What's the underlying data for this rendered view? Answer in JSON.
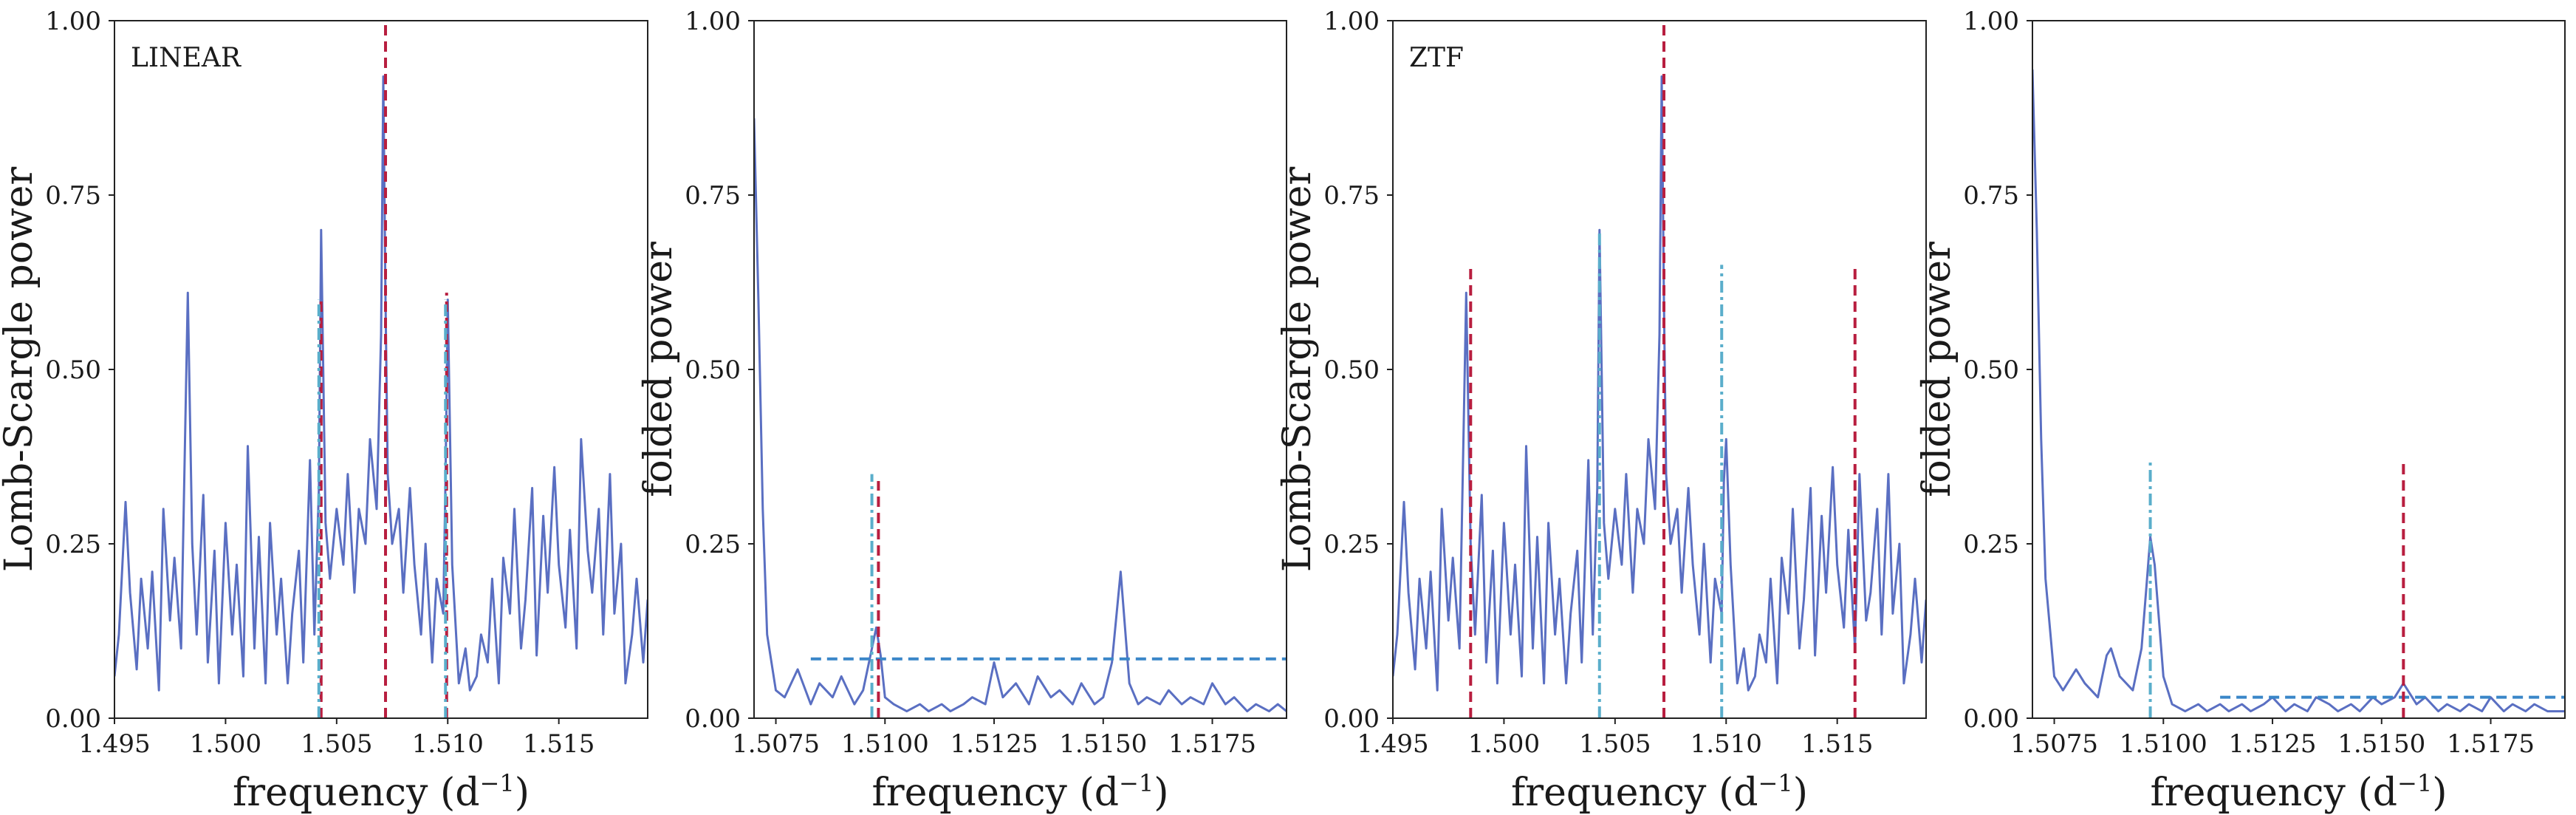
{
  "colors": {
    "periodogram": "#5a6fc2",
    "main_peak_marker": "#b81e3f",
    "alias_marker": "#5aaecb",
    "threshold": "#3a86c8",
    "frame": "#222222"
  },
  "chart_data": [
    {
      "type": "line",
      "panel_label": "LINEAR",
      "xlabel": "frequency (d",
      "xlabel_exp": "−1",
      "xlabel_end": ")",
      "ylabel": "Lomb-Scargle power",
      "xlim": [
        1.495,
        1.519
      ],
      "ylim": [
        0.0,
        1.0
      ],
      "xticks": [
        1.495,
        1.5,
        1.505,
        1.51,
        1.515
      ],
      "xtick_labels": [
        "1.495",
        "1.500",
        "1.505",
        "1.510",
        "1.515"
      ],
      "yticks": [
        0.0,
        0.25,
        0.5,
        0.75,
        1.0
      ],
      "ytick_labels": [
        "0.00",
        "0.25",
        "0.50",
        "0.75",
        "1.00"
      ],
      "grid": false,
      "series": [
        {
          "x": [
            1.495,
            1.4952,
            1.4955,
            1.4957,
            1.496,
            1.4962,
            1.4965,
            1.4967,
            1.497,
            1.4972,
            1.4975,
            1.4977,
            1.498,
            1.4983,
            1.4985,
            1.4987,
            1.499,
            1.4992,
            1.4995,
            1.4997,
            1.5,
            1.5003,
            1.5005,
            1.5008,
            1.501,
            1.5013,
            1.5015,
            1.5018,
            1.502,
            1.5023,
            1.5025,
            1.5028,
            1.503,
            1.5033,
            1.5035,
            1.5038,
            1.504,
            1.5042,
            1.5043,
            1.5045,
            1.5047,
            1.505,
            1.5053,
            1.5055,
            1.5058,
            1.506,
            1.5063,
            1.5065,
            1.5068,
            1.507,
            1.5071,
            1.5072,
            1.5073,
            1.5075,
            1.5078,
            1.508,
            1.5083,
            1.5085,
            1.5088,
            1.509,
            1.5093,
            1.5095,
            1.5098,
            1.5099,
            1.51,
            1.5102,
            1.5105,
            1.5108,
            1.511,
            1.5113,
            1.5115,
            1.5118,
            1.512,
            1.5123,
            1.5125,
            1.5128,
            1.513,
            1.5133,
            1.5135,
            1.5138,
            1.514,
            1.5143,
            1.5145,
            1.5148,
            1.515,
            1.5153,
            1.5155,
            1.5158,
            1.516,
            1.5163,
            1.5165,
            1.5168,
            1.517,
            1.5173,
            1.5175,
            1.5178,
            1.518,
            1.5183,
            1.5185,
            1.5188,
            1.519
          ],
          "y": [
            0.06,
            0.12,
            0.31,
            0.18,
            0.07,
            0.2,
            0.1,
            0.21,
            0.04,
            0.3,
            0.14,
            0.23,
            0.1,
            0.61,
            0.25,
            0.12,
            0.32,
            0.08,
            0.24,
            0.05,
            0.28,
            0.12,
            0.22,
            0.06,
            0.39,
            0.1,
            0.26,
            0.05,
            0.28,
            0.12,
            0.2,
            0.05,
            0.15,
            0.24,
            0.08,
            0.37,
            0.12,
            0.33,
            0.7,
            0.28,
            0.2,
            0.3,
            0.22,
            0.35,
            0.18,
            0.3,
            0.25,
            0.4,
            0.3,
            0.55,
            0.92,
            0.6,
            0.35,
            0.25,
            0.3,
            0.18,
            0.33,
            0.22,
            0.12,
            0.25,
            0.08,
            0.2,
            0.15,
            0.34,
            0.6,
            0.22,
            0.05,
            0.1,
            0.04,
            0.06,
            0.12,
            0.08,
            0.2,
            0.05,
            0.23,
            0.15,
            0.3,
            0.1,
            0.17,
            0.33,
            0.09,
            0.29,
            0.18,
            0.36,
            0.22,
            0.13,
            0.27,
            0.1,
            0.4,
            0.24,
            0.18,
            0.3,
            0.12,
            0.35,
            0.15,
            0.25,
            0.05,
            0.12,
            0.2,
            0.08,
            0.17
          ]
        }
      ],
      "markers": [
        {
          "x": 1.5072,
          "y_top": 1.0,
          "style": "dashed",
          "color": "main_peak_marker"
        },
        {
          "x": 1.5043,
          "y_top": 0.6,
          "style": "dashed",
          "color": "main_peak_marker"
        },
        {
          "x": 1.50995,
          "y_top": 0.61,
          "style": "dashed",
          "color": "main_peak_marker"
        },
        {
          "x": 1.5042,
          "y_top": 0.6,
          "style": "dashdot",
          "color": "alias_marker"
        },
        {
          "x": 1.5099,
          "y_top": 0.6,
          "style": "dashdot",
          "color": "alias_marker"
        }
      ],
      "threshold": null
    },
    {
      "type": "line",
      "panel_label": "",
      "xlabel": "frequency (d",
      "xlabel_exp": "−1",
      "xlabel_end": ")",
      "ylabel": "folded power",
      "xlim": [
        1.507,
        1.5192
      ],
      "ylim": [
        0.0,
        1.0
      ],
      "xticks": [
        1.5075,
        1.51,
        1.5125,
        1.515,
        1.5175
      ],
      "xtick_labels": [
        "1.5075",
        "1.5100",
        "1.5125",
        "1.5150",
        "1.5175"
      ],
      "yticks": [
        0.0,
        0.25,
        0.5,
        0.75,
        1.0
      ],
      "ytick_labels": [
        "0.00",
        "0.25",
        "0.50",
        "0.75",
        "1.00"
      ],
      "grid": false,
      "series": [
        {
          "x": [
            1.507,
            1.5071,
            1.5072,
            1.5073,
            1.5075,
            1.5077,
            1.508,
            1.5083,
            1.5085,
            1.5088,
            1.509,
            1.5093,
            1.5095,
            1.5097,
            1.5098,
            1.5099,
            1.51,
            1.5102,
            1.5105,
            1.5108,
            1.511,
            1.5113,
            1.5115,
            1.5118,
            1.512,
            1.5123,
            1.5125,
            1.5127,
            1.513,
            1.5133,
            1.5135,
            1.5138,
            1.514,
            1.5143,
            1.5145,
            1.5148,
            1.515,
            1.5152,
            1.5154,
            1.5156,
            1.5158,
            1.516,
            1.5163,
            1.5165,
            1.5168,
            1.517,
            1.5173,
            1.5175,
            1.5178,
            1.518,
            1.5183,
            1.5185,
            1.5188,
            1.519,
            1.5192
          ],
          "y": [
            0.86,
            0.6,
            0.3,
            0.12,
            0.04,
            0.03,
            0.07,
            0.02,
            0.05,
            0.03,
            0.06,
            0.02,
            0.04,
            0.1,
            0.13,
            0.09,
            0.03,
            0.02,
            0.01,
            0.02,
            0.01,
            0.02,
            0.01,
            0.02,
            0.03,
            0.02,
            0.08,
            0.03,
            0.05,
            0.02,
            0.06,
            0.03,
            0.04,
            0.02,
            0.05,
            0.02,
            0.03,
            0.08,
            0.21,
            0.05,
            0.02,
            0.03,
            0.02,
            0.04,
            0.02,
            0.03,
            0.02,
            0.05,
            0.02,
            0.03,
            0.01,
            0.02,
            0.01,
            0.02,
            0.01
          ]
        }
      ],
      "markers": [
        {
          "x": 1.50985,
          "y_top": 0.34,
          "style": "dashed",
          "color": "main_peak_marker"
        },
        {
          "x": 1.5097,
          "y_top": 0.35,
          "style": "dashdot",
          "color": "alias_marker"
        }
      ],
      "threshold": {
        "y": 0.085,
        "x_start": 1.5083,
        "x_end": 1.5192
      }
    },
    {
      "type": "line",
      "panel_label": "ZTF",
      "xlabel": "frequency (d",
      "xlabel_exp": "−1",
      "xlabel_end": ")",
      "ylabel": "Lomb-Scargle power",
      "xlim": [
        1.495,
        1.519
      ],
      "ylim": [
        0.0,
        1.0
      ],
      "xticks": [
        1.495,
        1.5,
        1.505,
        1.51,
        1.515
      ],
      "xtick_labels": [
        "1.495",
        "1.500",
        "1.505",
        "1.510",
        "1.515"
      ],
      "yticks": [
        0.0,
        0.25,
        0.5,
        0.75,
        1.0
      ],
      "ytick_labels": [
        "0.00",
        "0.25",
        "0.50",
        "0.75",
        "1.00"
      ],
      "grid": false,
      "series": [
        {
          "x": [
            1.495,
            1.4952,
            1.4955,
            1.4957,
            1.496,
            1.4962,
            1.4965,
            1.4967,
            1.497,
            1.4972,
            1.4975,
            1.4977,
            1.498,
            1.4983,
            1.4985,
            1.4987,
            1.499,
            1.4992,
            1.4995,
            1.4997,
            1.5,
            1.5003,
            1.5005,
            1.5008,
            1.501,
            1.5013,
            1.5015,
            1.5018,
            1.502,
            1.5023,
            1.5025,
            1.5028,
            1.503,
            1.5033,
            1.5035,
            1.5038,
            1.504,
            1.5042,
            1.5043,
            1.5045,
            1.5047,
            1.505,
            1.5053,
            1.5055,
            1.5058,
            1.506,
            1.5063,
            1.5065,
            1.5068,
            1.507,
            1.5071,
            1.5072,
            1.5073,
            1.5075,
            1.5078,
            1.508,
            1.5083,
            1.5085,
            1.5088,
            1.509,
            1.5093,
            1.5095,
            1.5098,
            1.5099,
            1.51,
            1.5102,
            1.5105,
            1.5108,
            1.511,
            1.5113,
            1.5115,
            1.5118,
            1.512,
            1.5123,
            1.5125,
            1.5128,
            1.513,
            1.5133,
            1.5135,
            1.5138,
            1.514,
            1.5143,
            1.5145,
            1.5148,
            1.515,
            1.5153,
            1.5155,
            1.5158,
            1.516,
            1.5163,
            1.5165,
            1.5168,
            1.517,
            1.5173,
            1.5175,
            1.5178,
            1.518,
            1.5183,
            1.5185,
            1.5188,
            1.519
          ],
          "y": [
            0.06,
            0.12,
            0.31,
            0.18,
            0.07,
            0.2,
            0.1,
            0.21,
            0.04,
            0.3,
            0.14,
            0.23,
            0.1,
            0.61,
            0.25,
            0.12,
            0.32,
            0.08,
            0.24,
            0.05,
            0.28,
            0.12,
            0.22,
            0.06,
            0.39,
            0.1,
            0.26,
            0.05,
            0.28,
            0.12,
            0.2,
            0.05,
            0.15,
            0.24,
            0.08,
            0.37,
            0.12,
            0.33,
            0.7,
            0.28,
            0.2,
            0.3,
            0.22,
            0.35,
            0.18,
            0.3,
            0.25,
            0.4,
            0.3,
            0.55,
            0.92,
            0.6,
            0.35,
            0.25,
            0.3,
            0.18,
            0.33,
            0.22,
            0.12,
            0.25,
            0.08,
            0.2,
            0.15,
            0.34,
            0.4,
            0.22,
            0.05,
            0.1,
            0.04,
            0.06,
            0.12,
            0.08,
            0.2,
            0.05,
            0.23,
            0.15,
            0.3,
            0.1,
            0.17,
            0.33,
            0.09,
            0.29,
            0.18,
            0.36,
            0.22,
            0.13,
            0.27,
            0.1,
            0.35,
            0.14,
            0.18,
            0.3,
            0.12,
            0.35,
            0.15,
            0.25,
            0.05,
            0.12,
            0.2,
            0.08,
            0.17
          ]
        }
      ],
      "markers": [
        {
          "x": 1.4985,
          "y_top": 0.65,
          "style": "dashed",
          "color": "main_peak_marker"
        },
        {
          "x": 1.5072,
          "y_top": 1.0,
          "style": "dashed",
          "color": "main_peak_marker"
        },
        {
          "x": 1.5158,
          "y_top": 0.65,
          "style": "dashed",
          "color": "main_peak_marker"
        },
        {
          "x": 1.5043,
          "y_top": 0.7,
          "style": "dashdot",
          "color": "alias_marker"
        },
        {
          "x": 1.5098,
          "y_top": 0.65,
          "style": "dashdot",
          "color": "alias_marker"
        }
      ],
      "threshold": null
    },
    {
      "type": "line",
      "panel_label": "",
      "xlabel": "frequency (d",
      "xlabel_exp": "−1",
      "xlabel_end": ")",
      "ylabel": "folded power",
      "xlim": [
        1.507,
        1.5192
      ],
      "ylim": [
        0.0,
        1.0
      ],
      "xticks": [
        1.5075,
        1.51,
        1.5125,
        1.515,
        1.5175
      ],
      "xtick_labels": [
        "1.5075",
        "1.5100",
        "1.5125",
        "1.5150",
        "1.5175"
      ],
      "yticks": [
        0.0,
        0.25,
        0.5,
        0.75,
        1.0
      ],
      "ytick_labels": [
        "0.00",
        "0.25",
        "0.50",
        "0.75",
        "1.00"
      ],
      "grid": false,
      "series": [
        {
          "x": [
            1.507,
            1.5071,
            1.5072,
            1.5073,
            1.5075,
            1.5077,
            1.508,
            1.5082,
            1.5085,
            1.5087,
            1.5088,
            1.509,
            1.5093,
            1.5095,
            1.5096,
            1.5097,
            1.5098,
            1.51,
            1.5102,
            1.5105,
            1.5108,
            1.511,
            1.5113,
            1.5115,
            1.5118,
            1.512,
            1.5123,
            1.5125,
            1.5128,
            1.513,
            1.5133,
            1.5135,
            1.5138,
            1.514,
            1.5143,
            1.5145,
            1.5148,
            1.515,
            1.5153,
            1.5155,
            1.5158,
            1.516,
            1.5163,
            1.5165,
            1.5168,
            1.517,
            1.5173,
            1.5175,
            1.5178,
            1.518,
            1.5183,
            1.5185,
            1.5188,
            1.519,
            1.5192
          ],
          "y": [
            0.93,
            0.7,
            0.4,
            0.2,
            0.06,
            0.04,
            0.07,
            0.05,
            0.03,
            0.09,
            0.1,
            0.06,
            0.04,
            0.1,
            0.18,
            0.26,
            0.22,
            0.06,
            0.02,
            0.01,
            0.02,
            0.01,
            0.02,
            0.01,
            0.02,
            0.01,
            0.02,
            0.03,
            0.01,
            0.02,
            0.01,
            0.03,
            0.02,
            0.01,
            0.02,
            0.01,
            0.03,
            0.02,
            0.03,
            0.05,
            0.02,
            0.03,
            0.01,
            0.02,
            0.01,
            0.02,
            0.01,
            0.03,
            0.01,
            0.02,
            0.01,
            0.02,
            0.01,
            0.01,
            0.01
          ]
        }
      ],
      "markers": [
        {
          "x": 1.5155,
          "y_top": 0.37,
          "style": "dashed",
          "color": "main_peak_marker"
        },
        {
          "x": 1.5097,
          "y_top": 0.37,
          "style": "dashdot",
          "color": "alias_marker"
        }
      ],
      "threshold": {
        "y": 0.03,
        "x_start": 1.5113,
        "x_end": 1.5192
      }
    }
  ]
}
